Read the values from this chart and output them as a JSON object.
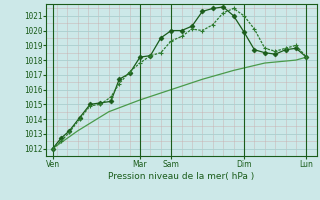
{
  "title": "Pression niveau de la mer( hPa )",
  "background_color": "#cce8e8",
  "grid_color_major": "#aacece",
  "grid_color_minor": "#c0dcdc",
  "line_color_dark": "#1a5c1a",
  "line_color_medium": "#2d7a2d",
  "line_color_light": "#4a9a4a",
  "ylim": [
    1011.5,
    1021.8
  ],
  "yticks": [
    1012,
    1013,
    1014,
    1015,
    1016,
    1017,
    1018,
    1019,
    1020,
    1021
  ],
  "xlim": [
    0,
    13
  ],
  "day_labels": [
    "Ven",
    "Mar",
    "Sam",
    "Dim",
    "Lun"
  ],
  "day_positions": [
    0.3,
    4.5,
    6.0,
    9.5,
    12.5
  ],
  "vline_positions": [
    0.3,
    4.5,
    6.0,
    9.5,
    12.5
  ],
  "line1_x": [
    0.3,
    0.7,
    1.1,
    1.6,
    2.1,
    2.6,
    3.1,
    3.5,
    4.0,
    4.5,
    5.0,
    5.5,
    6.0,
    6.5,
    7.0,
    7.5,
    8.0,
    8.5,
    9.0,
    9.5,
    10.0,
    10.5,
    11.0,
    11.5,
    12.0,
    12.5
  ],
  "line1_y": [
    1012.0,
    1012.7,
    1013.2,
    1014.1,
    1015.0,
    1015.1,
    1015.2,
    1016.7,
    1017.1,
    1018.2,
    1018.3,
    1019.5,
    1020.0,
    1020.0,
    1020.3,
    1021.3,
    1021.5,
    1021.6,
    1021.0,
    1019.9,
    1018.7,
    1018.5,
    1018.4,
    1018.7,
    1018.8,
    1018.2
  ],
  "line2_x": [
    0.3,
    0.7,
    1.1,
    1.6,
    2.1,
    2.6,
    3.1,
    3.5,
    4.0,
    4.5,
    5.0,
    5.5,
    6.0,
    6.5,
    7.0,
    7.5,
    8.0,
    8.5,
    9.0,
    9.5,
    10.0,
    10.5,
    11.0,
    11.5,
    12.0,
    12.5
  ],
  "line2_y": [
    1012.0,
    1012.5,
    1013.1,
    1014.0,
    1014.9,
    1015.0,
    1015.5,
    1016.4,
    1017.2,
    1017.8,
    1018.3,
    1018.5,
    1019.3,
    1019.6,
    1020.1,
    1020.0,
    1020.4,
    1021.2,
    1021.5,
    1021.0,
    1020.1,
    1018.8,
    1018.6,
    1018.8,
    1019.0,
    1018.2
  ],
  "line3_x": [
    0.3,
    1.5,
    3.0,
    4.5,
    6.0,
    7.5,
    9.0,
    10.5,
    12.0,
    12.5
  ],
  "line3_y": [
    1012.0,
    1013.2,
    1014.5,
    1015.3,
    1016.0,
    1016.7,
    1017.3,
    1017.8,
    1018.0,
    1018.2
  ]
}
